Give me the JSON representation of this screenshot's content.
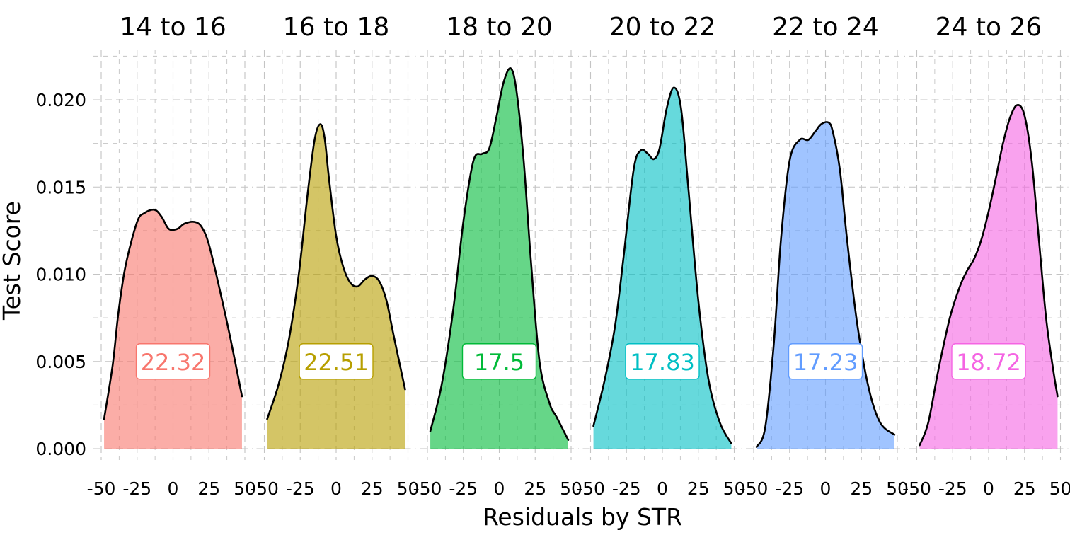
{
  "chart_data": {
    "type": "area",
    "subtype": "faceted-density",
    "xlabel": "Residuals by STR",
    "ylabel": "Test Score",
    "xlim": [
      -50,
      50
    ],
    "ylim": [
      0,
      0.022
    ],
    "x_ticks": [
      -50,
      -25,
      0,
      25,
      50
    ],
    "x_tick_labels": [
      "-50",
      "-25",
      "0",
      "25",
      "50"
    ],
    "y_ticks": [
      0,
      0.005,
      0.01,
      0.015,
      0.02
    ],
    "y_tick_labels": [
      "0.000",
      "0.005",
      "0.010",
      "0.015",
      "0.020"
    ],
    "grid": true,
    "legend": "none",
    "label_y": 0.005,
    "panels": [
      {
        "title": "14 to 16",
        "color": "#F8766D",
        "label": "22.32",
        "x": [
          -48,
          -42,
          -38,
          -33,
          -25,
          -20,
          -13,
          -8,
          -3,
          3,
          8,
          15,
          20,
          25,
          32,
          40,
          48
        ],
        "y": [
          0.0017,
          0.0048,
          0.0078,
          0.0105,
          0.013,
          0.0135,
          0.0137,
          0.0133,
          0.0126,
          0.0126,
          0.0129,
          0.013,
          0.0127,
          0.0117,
          0.0093,
          0.0063,
          0.003
        ]
      },
      {
        "title": "16 to 18",
        "color": "#B79F00",
        "label": "22.51",
        "x": [
          -48,
          -40,
          -33,
          -26,
          -20,
          -15,
          -11,
          -8,
          -5,
          0,
          5,
          10,
          15,
          20,
          25,
          30,
          35,
          40,
          48
        ],
        "y": [
          0.0017,
          0.0037,
          0.0062,
          0.01,
          0.0145,
          0.0177,
          0.0186,
          0.0178,
          0.0155,
          0.0122,
          0.0104,
          0.0095,
          0.0093,
          0.0097,
          0.0099,
          0.0096,
          0.0085,
          0.0065,
          0.0034
        ]
      },
      {
        "title": "18 to 20",
        "color": "#00BA38",
        "label": "17.5",
        "x": [
          -48,
          -40,
          -32,
          -25,
          -18,
          -12,
          -7,
          -2,
          3,
          8,
          12,
          17,
          22,
          28,
          35,
          40,
          48
        ],
        "y": [
          0.001,
          0.0037,
          0.008,
          0.013,
          0.0165,
          0.0169,
          0.0172,
          0.019,
          0.021,
          0.0218,
          0.0205,
          0.0165,
          0.0108,
          0.005,
          0.0026,
          0.0018,
          0.0005
        ]
      },
      {
        "title": "20 to 22",
        "color": "#00BFC4",
        "label": "17.83",
        "x": [
          -48,
          -40,
          -33,
          -27,
          -20,
          -15,
          -10,
          -6,
          -2,
          3,
          8,
          13,
          18,
          25,
          32,
          40,
          48
        ],
        "y": [
          0.0013,
          0.004,
          0.007,
          0.011,
          0.016,
          0.0171,
          0.0169,
          0.0166,
          0.0172,
          0.0195,
          0.0207,
          0.0195,
          0.015,
          0.0085,
          0.004,
          0.0015,
          0.0003
        ]
      },
      {
        "title": "22 to 24",
        "color": "#619CFF",
        "label": "17.23",
        "x": [
          -48,
          -42,
          -36,
          -31,
          -25,
          -18,
          -12,
          -7,
          -3,
          2,
          5,
          10,
          15,
          22,
          30,
          38,
          48
        ],
        "y": [
          0.0001,
          0.0012,
          0.006,
          0.012,
          0.0165,
          0.0177,
          0.0177,
          0.0182,
          0.0186,
          0.0187,
          0.0182,
          0.016,
          0.012,
          0.0072,
          0.0035,
          0.0015,
          0.0008
        ]
      },
      {
        "title": "24 to 26",
        "color": "#F564E3",
        "label": "18.72",
        "x": [
          -48,
          -42,
          -35,
          -27,
          -20,
          -15,
          -10,
          -5,
          0,
          5,
          10,
          15,
          20,
          25,
          30,
          35,
          40,
          45,
          48
        ],
        "y": [
          0.0002,
          0.0015,
          0.0045,
          0.0075,
          0.0093,
          0.0102,
          0.0109,
          0.012,
          0.0136,
          0.0155,
          0.0175,
          0.019,
          0.0197,
          0.0191,
          0.0165,
          0.012,
          0.0075,
          0.0045,
          0.003
        ]
      }
    ]
  }
}
